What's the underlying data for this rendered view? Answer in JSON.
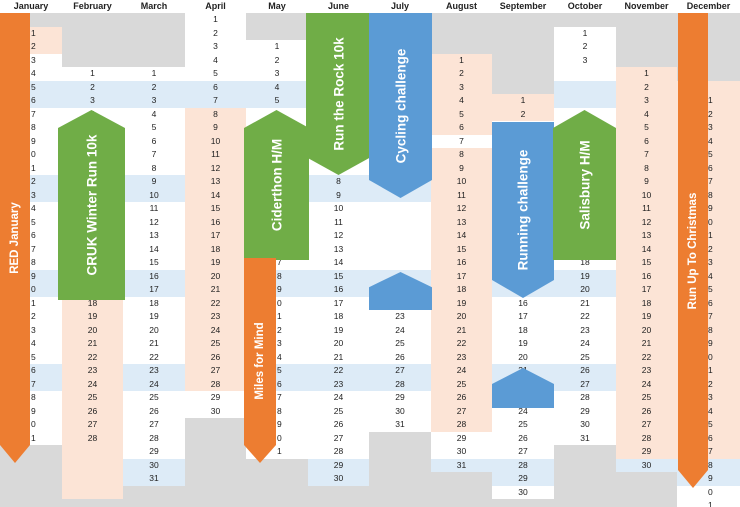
{
  "months": [
    "January",
    "February",
    "March",
    "April",
    "May",
    "June",
    "July",
    "August",
    "September",
    "October",
    "November",
    "December"
  ],
  "month_columns": [
    {
      "month": "January",
      "days": 31,
      "first_row": 1
    },
    {
      "month": "February",
      "days": 28,
      "first_row": 4
    },
    {
      "month": "March",
      "days": 31,
      "first_row": 4
    },
    {
      "month": "April",
      "days": 30,
      "first_row": 0
    },
    {
      "month": "May",
      "days": 31,
      "first_row": 2
    },
    {
      "month": "June",
      "days": 30,
      "first_row": 5
    },
    {
      "month": "July",
      "days": 31,
      "first_row": 0
    },
    {
      "month": "August",
      "days": 31,
      "first_row": 3
    },
    {
      "month": "September",
      "days": 30,
      "first_row": 6
    },
    {
      "month": "October",
      "days": 31,
      "first_row": 1
    },
    {
      "month": "November",
      "days": 30,
      "first_row": 4
    },
    {
      "month": "December",
      "days": 31,
      "first_row": 6
    }
  ],
  "events": [
    {
      "label": "RED January",
      "month": "January",
      "color": "#ed7d31",
      "shape": "tall-arrow-down"
    },
    {
      "label": "CRUK Winter Run 10k",
      "month": "February",
      "color": "#70ad47",
      "shape": "arrow-up"
    },
    {
      "label": "Ciderthon H/M",
      "month": "May",
      "color": "#70ad47",
      "shape": "arrow-up"
    },
    {
      "label": "Miles for Mind",
      "month": "May",
      "color": "#ed7d31",
      "shape": "tall-arrow-down"
    },
    {
      "label": "Run the Rock 10k",
      "month": "June",
      "color": "#70ad47",
      "shape": "arrow-down"
    },
    {
      "label": "Cycling challenge",
      "month": "July",
      "color": "#5b9bd5",
      "shape": "arrow-down"
    },
    {
      "label": "",
      "month": "July",
      "color": "#5b9bd5",
      "shape": "pentagon-up"
    },
    {
      "label": "Running challenge",
      "month": "September",
      "color": "#5b9bd5",
      "shape": "arrow-down"
    },
    {
      "label": "",
      "month": "September",
      "color": "#5b9bd5",
      "shape": "pentagon-up"
    },
    {
      "label": "Salisbury H/M",
      "month": "October",
      "color": "#70ad47",
      "shape": "arrow-up"
    },
    {
      "label": "Run Up To Christmas",
      "month": "December",
      "color": "#ed7d31",
      "shape": "tall-arrow-down"
    }
  ],
  "colors": {
    "weekend_band": "#ddebf7",
    "peach": "#fce4d6",
    "empty": "#d9d9d9",
    "orange": "#ed7d31",
    "green": "#70ad47",
    "blue": "#5b9bd5"
  }
}
